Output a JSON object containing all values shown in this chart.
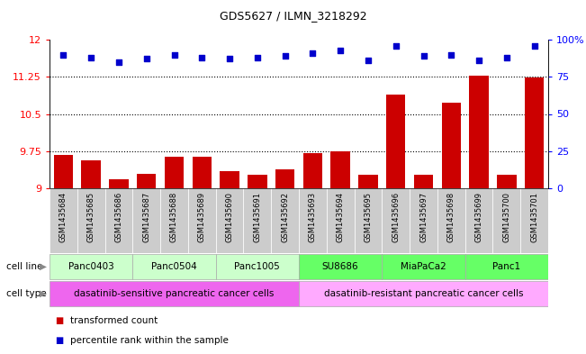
{
  "title": "GDS5627 / ILMN_3218292",
  "samples": [
    "GSM1435684",
    "GSM1435685",
    "GSM1435686",
    "GSM1435687",
    "GSM1435688",
    "GSM1435689",
    "GSM1435690",
    "GSM1435691",
    "GSM1435692",
    "GSM1435693",
    "GSM1435694",
    "GSM1435695",
    "GSM1435696",
    "GSM1435697",
    "GSM1435698",
    "GSM1435699",
    "GSM1435700",
    "GSM1435701"
  ],
  "bar_values": [
    9.68,
    9.56,
    9.19,
    9.29,
    9.64,
    9.64,
    9.35,
    9.28,
    9.39,
    9.71,
    9.75,
    9.27,
    10.9,
    9.27,
    10.72,
    11.28,
    9.27,
    11.24
  ],
  "dot_values": [
    90,
    88,
    85,
    87,
    90,
    88,
    87,
    88,
    89,
    91,
    93,
    86,
    96,
    89,
    90,
    86,
    88,
    96
  ],
  "ylim": [
    9,
    12
  ],
  "yticks_left": [
    9,
    9.75,
    10.5,
    11.25,
    12
  ],
  "yticks_right": [
    0,
    25,
    50,
    75,
    100
  ],
  "bar_color": "#cc0000",
  "dot_color": "#0000cc",
  "cell_lines": [
    {
      "label": "Panc0403",
      "start": 0,
      "end": 3,
      "color": "#ccffcc"
    },
    {
      "label": "Panc0504",
      "start": 3,
      "end": 6,
      "color": "#ccffcc"
    },
    {
      "label": "Panc1005",
      "start": 6,
      "end": 9,
      "color": "#ccffcc"
    },
    {
      "label": "SU8686",
      "start": 9,
      "end": 12,
      "color": "#66ff66"
    },
    {
      "label": "MiaPaCa2",
      "start": 12,
      "end": 15,
      "color": "#66ff66"
    },
    {
      "label": "Panc1",
      "start": 15,
      "end": 18,
      "color": "#66ff66"
    }
  ],
  "cell_types": [
    {
      "label": "dasatinib-sensitive pancreatic cancer cells",
      "start": 0,
      "end": 9,
      "color": "#ee66ee"
    },
    {
      "label": "dasatinib-resistant pancreatic cancer cells",
      "start": 9,
      "end": 18,
      "color": "#ffaaff"
    }
  ],
  "legend_bar_label": "transformed count",
  "legend_dot_label": "percentile rank within the sample",
  "cell_line_label": "cell line",
  "cell_type_label": "cell type",
  "grid_dotted_values": [
    9.75,
    10.5,
    11.25
  ],
  "bg_xtick": "#cccccc"
}
